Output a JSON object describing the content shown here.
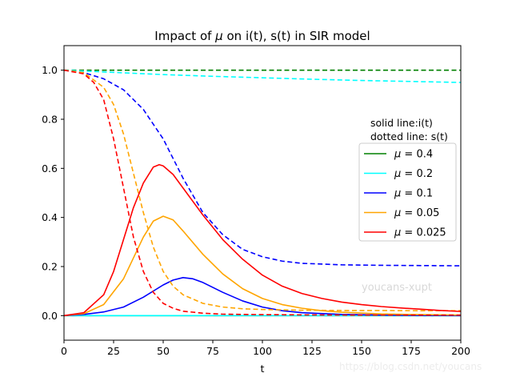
{
  "chart_data": {
    "type": "line",
    "title_prefix": "Impact of ",
    "title_mu": "μ",
    "title_suffix": " on i(t), s(t) in SIR model",
    "xlabel": "t",
    "ylabel": "",
    "xlim": [
      0,
      200
    ],
    "ylim": [
      -0.1,
      1.1
    ],
    "xticks": [
      0,
      25,
      50,
      75,
      100,
      125,
      150,
      175,
      200
    ],
    "yticks": [
      0.0,
      0.2,
      0.4,
      0.6,
      0.8,
      1.0
    ],
    "xtick_labels": [
      "0",
      "25",
      "50",
      "75",
      "100",
      "125",
      "150",
      "175",
      "200"
    ],
    "ytick_labels": [
      "0.0",
      "0.2",
      "0.4",
      "0.6",
      "0.8",
      "1.0"
    ],
    "grid": false,
    "legend_placement": "center-right",
    "legend_note_1": "solid line:i(t)",
    "legend_note_2": "dotted line: s(t)",
    "legend_prefix": "μ",
    "series": [
      {
        "name": "= 0.4",
        "color": "#008000",
        "i": {
          "x": [
            0,
            200
          ],
          "y": [
            0.0,
            0.0
          ]
        },
        "s": {
          "x": [
            0,
            200
          ],
          "y": [
            1.0,
            1.0
          ]
        }
      },
      {
        "name": "= 0.2",
        "color": "#00ffff",
        "i": {
          "x": [
            0,
            200
          ],
          "y": [
            0.0,
            0.0
          ]
        },
        "s": {
          "x": [
            0,
            25,
            50,
            75,
            100,
            125,
            150,
            175,
            200
          ],
          "y": [
            1.0,
            0.991,
            0.982,
            0.975,
            0.969,
            0.963,
            0.958,
            0.954,
            0.95
          ]
        }
      },
      {
        "name": "= 0.1",
        "color": "#0000ff",
        "i": {
          "x": [
            0,
            10,
            20,
            30,
            40,
            50,
            55,
            60,
            65,
            70,
            80,
            90,
            100,
            110,
            120,
            140,
            160,
            180,
            200
          ],
          "y": [
            0.0,
            0.005,
            0.015,
            0.035,
            0.075,
            0.125,
            0.145,
            0.155,
            0.15,
            0.135,
            0.095,
            0.06,
            0.035,
            0.02,
            0.012,
            0.005,
            0.002,
            0.001,
            0.0
          ]
        },
        "s": {
          "x": [
            0,
            10,
            20,
            30,
            40,
            50,
            60,
            70,
            80,
            90,
            100,
            110,
            120,
            140,
            160,
            180,
            200
          ],
          "y": [
            1.0,
            0.99,
            0.965,
            0.92,
            0.84,
            0.72,
            0.56,
            0.42,
            0.33,
            0.27,
            0.24,
            0.222,
            0.213,
            0.207,
            0.205,
            0.204,
            0.203
          ]
        }
      },
      {
        "name": "= 0.05",
        "color": "#ffa500",
        "i": {
          "x": [
            0,
            10,
            20,
            30,
            40,
            45,
            50,
            55,
            60,
            70,
            80,
            90,
            100,
            110,
            120,
            130,
            140,
            160,
            180,
            200
          ],
          "y": [
            0.0,
            0.008,
            0.045,
            0.15,
            0.32,
            0.385,
            0.405,
            0.39,
            0.345,
            0.25,
            0.17,
            0.11,
            0.07,
            0.045,
            0.03,
            0.02,
            0.014,
            0.007,
            0.004,
            0.002
          ]
        },
        "s": {
          "x": [
            0,
            10,
            20,
            25,
            30,
            35,
            40,
            45,
            50,
            55,
            60,
            70,
            80,
            90,
            100,
            120,
            140,
            160,
            180,
            200
          ],
          "y": [
            1.0,
            0.99,
            0.93,
            0.86,
            0.74,
            0.58,
            0.42,
            0.28,
            0.18,
            0.12,
            0.085,
            0.05,
            0.035,
            0.028,
            0.025,
            0.022,
            0.021,
            0.021,
            0.02,
            0.02
          ]
        }
      },
      {
        "name": "= 0.025",
        "color": "#ff0000",
        "i": {
          "x": [
            0,
            10,
            20,
            25,
            30,
            35,
            40,
            45,
            48,
            50,
            55,
            60,
            70,
            80,
            90,
            100,
            110,
            120,
            130,
            140,
            150,
            160,
            170,
            180,
            190,
            200
          ],
          "y": [
            0.0,
            0.012,
            0.085,
            0.18,
            0.31,
            0.44,
            0.54,
            0.605,
            0.615,
            0.61,
            0.575,
            0.52,
            0.41,
            0.31,
            0.23,
            0.165,
            0.12,
            0.09,
            0.07,
            0.055,
            0.045,
            0.037,
            0.031,
            0.026,
            0.021,
            0.017
          ]
        },
        "s": {
          "x": [
            0,
            10,
            15,
            20,
            25,
            30,
            35,
            40,
            45,
            50,
            55,
            60,
            70,
            80,
            100,
            120,
            150,
            200
          ],
          "y": [
            1.0,
            0.985,
            0.95,
            0.88,
            0.72,
            0.52,
            0.32,
            0.18,
            0.095,
            0.05,
            0.03,
            0.018,
            0.01,
            0.006,
            0.004,
            0.003,
            0.002,
            0.002
          ]
        }
      }
    ]
  },
  "watermarks": {
    "inner": "youcans-xupt",
    "footer": "https://blog.csdn.net/youcans"
  }
}
